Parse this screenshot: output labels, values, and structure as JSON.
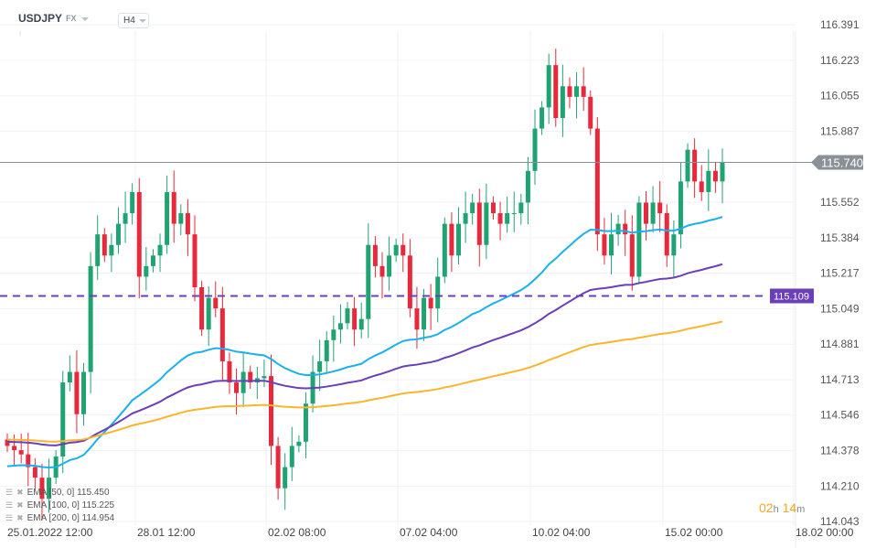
{
  "header": {
    "symbol": "USDJPY",
    "market": "FX",
    "timeframe": "H4"
  },
  "colors": {
    "up": "#1fa372",
    "down": "#e8283b",
    "ema50": "#1ab0f0",
    "ema100": "#6b3fb8",
    "ema200": "#f9b52c",
    "level": "#6b3fb8",
    "last": "#8a9196"
  },
  "chart_data": {
    "type": "candlestick",
    "ylim": [
      114.043,
      116.391
    ],
    "y_ticks": [
      "116.391",
      "116.223",
      "116.055",
      "115.887",
      "115.552",
      "115.384",
      "115.217",
      "115.049",
      "114.881",
      "114.713",
      "114.546",
      "114.378",
      "114.210",
      "114.043"
    ],
    "x_labels": [
      "25.01.2022  12:00",
      "28.01  12:00",
      "02.02  08:00",
      "07.02  04:00",
      "10.02  04:00",
      "15.02  00:00",
      "18.02  00:00"
    ],
    "closes": [
      114.4,
      114.38,
      114.36,
      114.3,
      114.25,
      114.15,
      114.25,
      114.35,
      114.7,
      114.75,
      114.55,
      114.75,
      115.25,
      115.4,
      115.3,
      115.35,
      115.45,
      115.5,
      115.6,
      115.2,
      115.25,
      115.3,
      115.35,
      115.6,
      115.45,
      115.5,
      115.4,
      115.15,
      114.95,
      115.1,
      115.05,
      114.8,
      114.7,
      114.65,
      114.75,
      114.7,
      114.72,
      114.73,
      114.4,
      114.2,
      114.3,
      114.4,
      114.42,
      114.6,
      114.75,
      114.8,
      114.9,
      114.95,
      114.98,
      115.05,
      114.95,
      115.0,
      115.35,
      115.25,
      115.2,
      115.3,
      115.35,
      115.3,
      115.05,
      114.95,
      115.1,
      115.05,
      115.2,
      115.45,
      115.3,
      115.45,
      115.5,
      115.55,
      115.35,
      115.55,
      115.5,
      115.45,
      115.5,
      115.5,
      115.55,
      115.7,
      115.9,
      116.0,
      116.2,
      115.95,
      116.1,
      116.05,
      116.1,
      116.05,
      115.9,
      115.4,
      115.3,
      115.4,
      115.45,
      115.4,
      115.2,
      115.55,
      115.45,
      115.55,
      115.5,
      115.3,
      115.4,
      115.65,
      115.8,
      115.65,
      115.6,
      115.7,
      115.65,
      115.74
    ],
    "last_price": "115.740",
    "level_price": "115.109",
    "last_value": 115.74,
    "level_value": 115.109
  },
  "legend": [
    {
      "label": "EMA [50, 0] 115.450"
    },
    {
      "label": "EMA [100, 0] 115.225"
    },
    {
      "label": "EMA [200, 0] 114.954"
    }
  ],
  "timer": {
    "h": "02",
    "hu": "h",
    "m": "14",
    "mu": "m"
  }
}
